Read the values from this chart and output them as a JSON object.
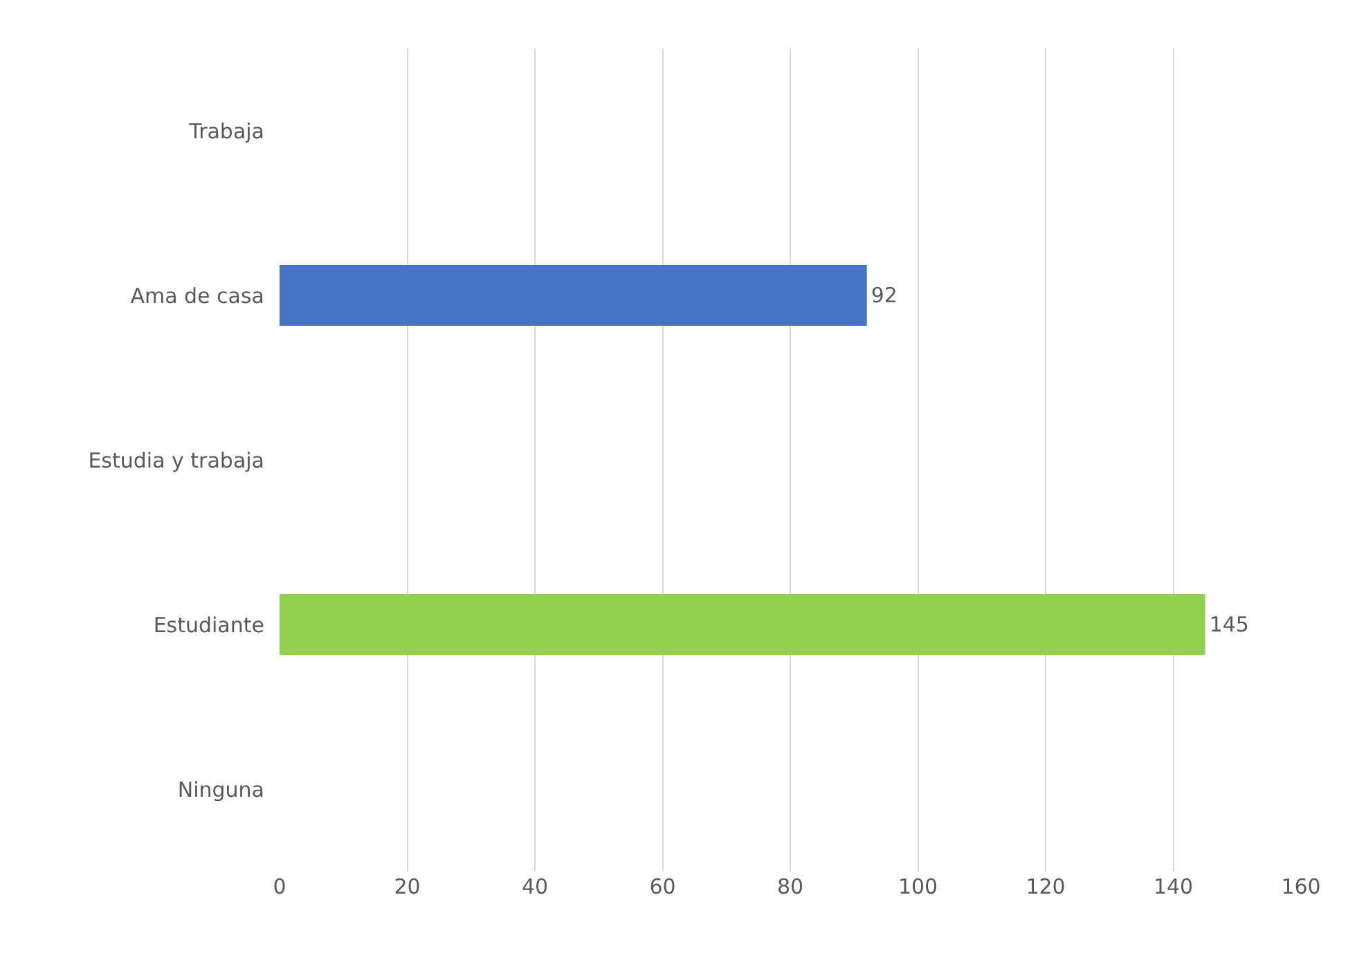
{
  "chart_data": {
    "type": "bar",
    "orientation": "horizontal",
    "categories": [
      "Trabaja",
      "Ama de casa",
      "Estudia y trabaja",
      "Estudiante",
      "Ninguna"
    ],
    "values": [
      null,
      92,
      null,
      145,
      null
    ],
    "colors": [
      "#4472c4",
      "#4472c4",
      "#70ad47",
      "#92d050",
      "#ed7d31"
    ],
    "xlim": [
      0,
      160
    ],
    "xticks": [
      0,
      20,
      40,
      60,
      80,
      100,
      120,
      140,
      160
    ],
    "grid": "x",
    "data_labels": true
  }
}
